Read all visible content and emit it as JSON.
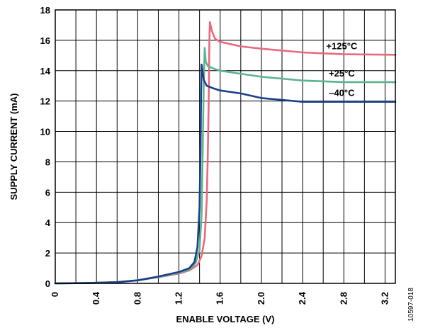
{
  "chart_data": {
    "type": "line",
    "xlabel": "ENABLE VOLTAGE (V)",
    "ylabel": "SUPPLY CURRENT (mA)",
    "xlim": [
      0,
      3.3
    ],
    "ylim": [
      0,
      18
    ],
    "x_ticks": [
      "0",
      "0.4",
      "0.8",
      "1.2",
      "1.6",
      "2.0",
      "2.4",
      "2.8",
      "3.2"
    ],
    "x_tick_values": [
      0,
      0.4,
      0.8,
      1.2,
      1.6,
      2.0,
      2.4,
      2.8,
      3.2
    ],
    "y_ticks": [
      "0",
      "2",
      "4",
      "6",
      "8",
      "10",
      "12",
      "14",
      "16",
      "18"
    ],
    "y_tick_values": [
      0,
      2,
      4,
      6,
      8,
      10,
      12,
      14,
      16,
      18
    ],
    "grid": true,
    "figure_id": "10597-018",
    "series": [
      {
        "name": "+125°C",
        "color": "#e8697d",
        "points": [
          [
            0,
            0
          ],
          [
            0.3,
            0.02
          ],
          [
            0.6,
            0.08
          ],
          [
            0.8,
            0.2
          ],
          [
            1.0,
            0.4
          ],
          [
            1.2,
            0.65
          ],
          [
            1.3,
            0.85
          ],
          [
            1.38,
            1.2
          ],
          [
            1.42,
            1.8
          ],
          [
            1.45,
            3.0
          ],
          [
            1.47,
            5.5
          ],
          [
            1.48,
            8.5
          ],
          [
            1.49,
            12.5
          ],
          [
            1.495,
            16.0
          ],
          [
            1.5,
            17.2
          ],
          [
            1.52,
            16.6
          ],
          [
            1.55,
            16.1
          ],
          [
            1.6,
            15.9
          ],
          [
            1.8,
            15.6
          ],
          [
            2.0,
            15.45
          ],
          [
            2.4,
            15.2
          ],
          [
            2.8,
            15.08
          ],
          [
            3.3,
            15.05
          ]
        ]
      },
      {
        "name": "+25°C",
        "color": "#5cb38f",
        "points": [
          [
            0,
            0
          ],
          [
            0.3,
            0.02
          ],
          [
            0.6,
            0.08
          ],
          [
            0.8,
            0.2
          ],
          [
            1.0,
            0.42
          ],
          [
            1.2,
            0.7
          ],
          [
            1.3,
            0.9
          ],
          [
            1.36,
            1.3
          ],
          [
            1.4,
            2.2
          ],
          [
            1.42,
            4.5
          ],
          [
            1.43,
            8.5
          ],
          [
            1.44,
            13.0
          ],
          [
            1.45,
            15.5
          ],
          [
            1.46,
            14.6
          ],
          [
            1.48,
            14.3
          ],
          [
            1.55,
            14.1
          ],
          [
            1.6,
            14.0
          ],
          [
            1.8,
            13.8
          ],
          [
            2.0,
            13.6
          ],
          [
            2.4,
            13.35
          ],
          [
            2.8,
            13.25
          ],
          [
            3.3,
            13.25
          ]
        ]
      },
      {
        "name": "–40°C",
        "color": "#1a3f8a",
        "points": [
          [
            0,
            0
          ],
          [
            0.3,
            0.02
          ],
          [
            0.6,
            0.08
          ],
          [
            0.8,
            0.2
          ],
          [
            1.0,
            0.45
          ],
          [
            1.2,
            0.75
          ],
          [
            1.3,
            1.0
          ],
          [
            1.35,
            1.4
          ],
          [
            1.38,
            2.4
          ],
          [
            1.4,
            5.0
          ],
          [
            1.41,
            9.0
          ],
          [
            1.415,
            12.5
          ],
          [
            1.42,
            14.4
          ],
          [
            1.44,
            13.4
          ],
          [
            1.47,
            13.0
          ],
          [
            1.55,
            12.8
          ],
          [
            1.6,
            12.7
          ],
          [
            1.8,
            12.5
          ],
          [
            2.0,
            12.2
          ],
          [
            2.4,
            11.95
          ],
          [
            2.8,
            11.95
          ],
          [
            3.3,
            11.95
          ]
        ]
      }
    ]
  }
}
